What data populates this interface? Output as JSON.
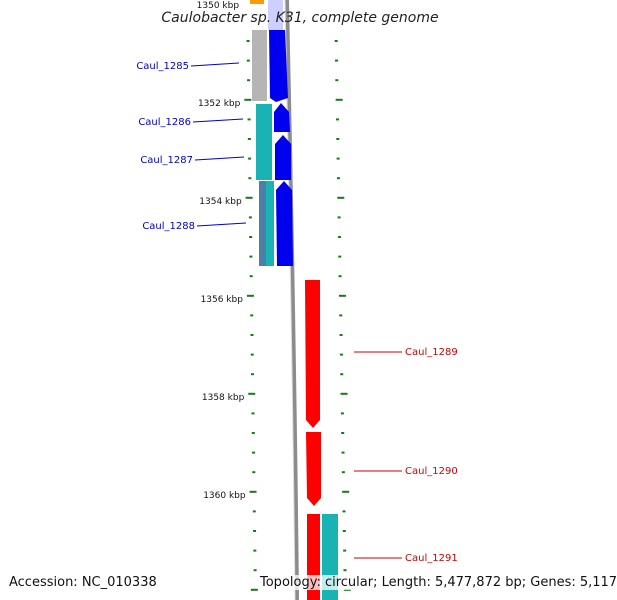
{
  "title": "Caulobacter sp. K31, complete genome",
  "footer": {
    "accession": "Accession: NC_010338",
    "topology": "Topology: circular; Length: 5,477,872 bp; Genes: 5,117"
  },
  "colors": {
    "background": "#ffffff",
    "backbone": "#8c8c8c",
    "tick": "#1a7a1a",
    "left_label": "#0000cc",
    "right_label": "#cc0000",
    "forward_cds": "#0000ee",
    "reverse_cds": "#ff0000",
    "rna": "#1ab3b3",
    "pseudo": "#4a7fa8",
    "grey_feature": "#b5b5b5",
    "orange_feature": "#ff9900"
  },
  "ticks": {
    "major_labels": [
      {
        "kb": 1350,
        "label": "1350 kbp"
      },
      {
        "kb": 1352,
        "label": "1352 kbp"
      },
      {
        "kb": 1354,
        "label": "1354 kbp"
      },
      {
        "kb": 1356,
        "label": "1356 kbp"
      },
      {
        "kb": 1358,
        "label": "1358 kbp"
      },
      {
        "kb": 1360,
        "label": "1360 kbp"
      }
    ]
  },
  "genes": {
    "left": [
      {
        "name": "Caul_1285"
      },
      {
        "name": "Caul_1286"
      },
      {
        "name": "Caul_1287"
      },
      {
        "name": "Caul_1288"
      }
    ],
    "right": [
      {
        "name": "Caul_1289"
      },
      {
        "name": "Caul_1290"
      },
      {
        "name": "Caul_1291"
      }
    ]
  }
}
